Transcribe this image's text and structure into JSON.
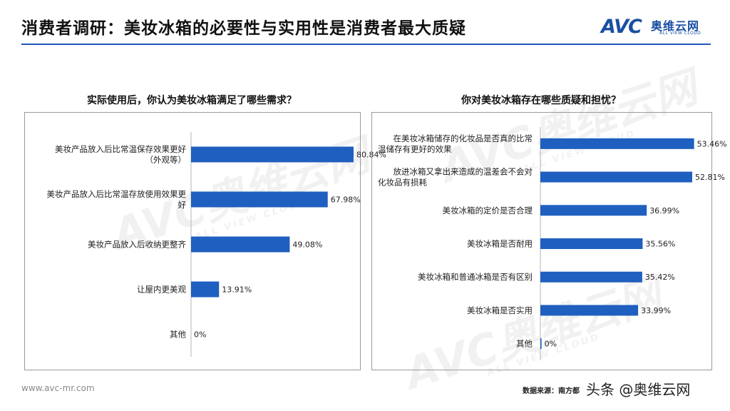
{
  "header": {
    "title": "消费者调研：美妆冰箱的必要性与实用性是消费者最大质疑",
    "logo_mark": "AVC",
    "logo_cn": "奥维云网",
    "logo_en": "ALL VIEW CLOUD"
  },
  "watermark": {
    "mark": "AVC",
    "cn": "奥维云网",
    "en": "ALL VIEW CLOUD"
  },
  "footer": {
    "website": "www.avc-mr.com",
    "source": "数据来源：南方都",
    "stamp": "头条 @奥维云网"
  },
  "colors": {
    "bar": "#1f5fbf",
    "rule": "#1f58b8",
    "logo": "#1a4fa3"
  },
  "chart_data": [
    {
      "type": "bar",
      "orientation": "horizontal",
      "title": "实际使用后，你认为美妆冰箱满足了哪些需求？",
      "categories": [
        [
          "美妆产品放入后比常温保存效果更好",
          "（外观等）"
        ],
        [
          "美妆产品放入后比常温存放使用效果更",
          "好"
        ],
        [
          "美妆产品放入后收纳更整齐"
        ],
        [
          "让屋内更美观"
        ],
        [
          "其他"
        ]
      ],
      "values": [
        80.84,
        67.98,
        49.08,
        13.91,
        0
      ],
      "value_labels": [
        "80.84%",
        "67.98%",
        "49.08%",
        "13.91%",
        "0%"
      ],
      "xlim": [
        0,
        100
      ]
    },
    {
      "type": "bar",
      "orientation": "horizontal",
      "title": "你对美妆冰箱存在哪些质疑和担忧？",
      "categories": [
        [
          "在美妆冰箱储存的化妆品是否真的比常",
          "温储存有更好的效果"
        ],
        [
          "放进冰箱又拿出来造成的温差会不会对",
          "化妆品有损耗"
        ],
        [
          "美妆冰箱的定价是否合理"
        ],
        [
          "美妆冰箱是否耐用"
        ],
        [
          "美妆冰箱和普通冰箱是否有区别"
        ],
        [
          "美妆冰箱是否实用"
        ],
        [
          "其他"
        ]
      ],
      "values": [
        53.46,
        52.81,
        36.99,
        35.56,
        35.42,
        33.99,
        0.4
      ],
      "value_labels": [
        "53.46%",
        "52.81%",
        "36.99%",
        "35.56%",
        "35.42%",
        "33.99%",
        "0%"
      ],
      "xlim": [
        0,
        60
      ]
    }
  ]
}
